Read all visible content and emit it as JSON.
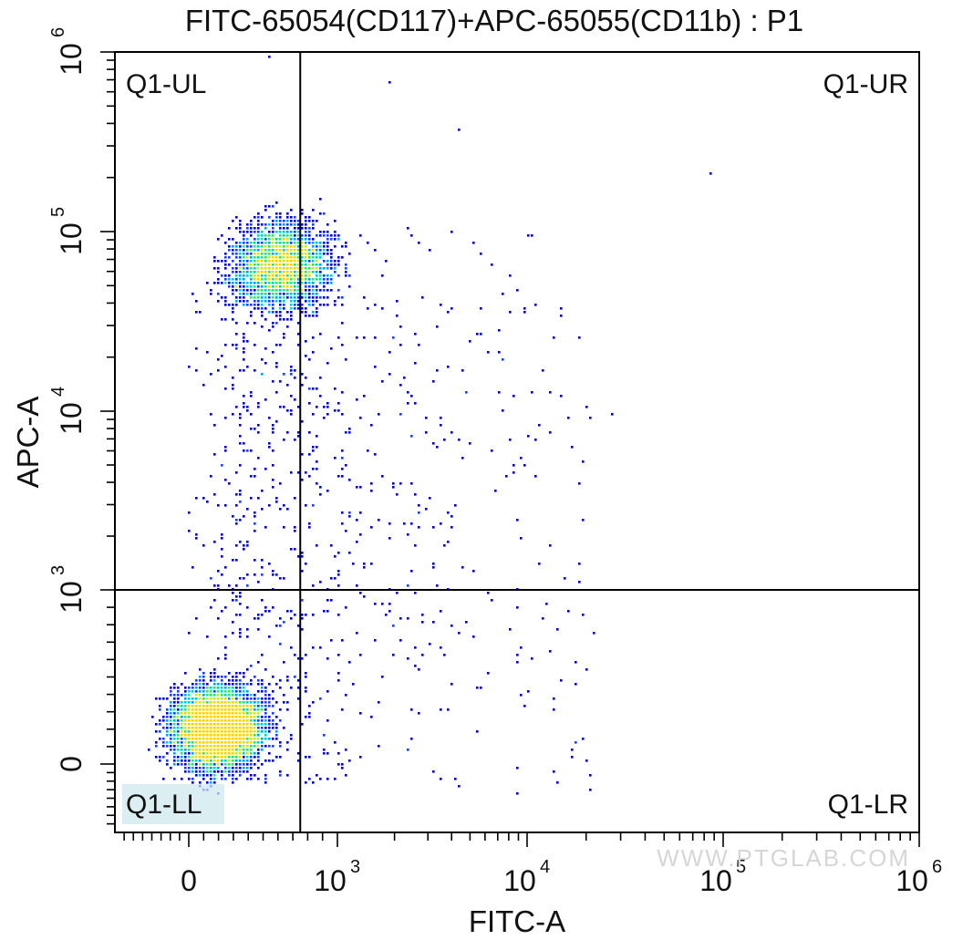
{
  "chart_data": {
    "type": "scatter",
    "title": "FITC-65054(CD117)+APC-65055(CD11b) : P1",
    "xlabel": "FITC-A",
    "ylabel": "APC-A",
    "x_scale": "biexponential (linear near 0, log above ~10^3)",
    "y_scale": "biexponential (linear near 0, log above ~10^3)",
    "xlim": [
      -800,
      1000000
    ],
    "ylim": [
      -800,
      1000000
    ],
    "x_ticks": [
      {
        "base": "0",
        "exp": ""
      },
      {
        "base": "10",
        "exp": "3"
      },
      {
        "base": "10",
        "exp": "4"
      },
      {
        "base": "10",
        "exp": "5"
      },
      {
        "base": "10",
        "exp": "6"
      }
    ],
    "y_ticks": [
      {
        "base": "0",
        "exp": ""
      },
      {
        "base": "10",
        "exp": "3"
      },
      {
        "base": "10",
        "exp": "4"
      },
      {
        "base": "10",
        "exp": "5"
      },
      {
        "base": "10",
        "exp": "6"
      }
    ],
    "gates": {
      "x_threshold": 750,
      "y_threshold": 1000
    },
    "quadrants": [
      {
        "label": "Q1-UL",
        "position": "top-left"
      },
      {
        "label": "Q1-UR",
        "position": "top-right"
      },
      {
        "label": "Q1-LL",
        "position": "bottom-left"
      },
      {
        "label": "Q1-LR",
        "position": "bottom-right"
      }
    ],
    "populations": [
      {
        "name": "",
        "x_center": 250,
        "y_center": 100,
        "description": "dense double-negative cluster in lower-left (highest density, green/yellow)"
      },
      {
        "name": "",
        "x_center": 600,
        "y_center": 60000,
        "description": "APC-positive cluster around 10^5 straddling the vertical gate"
      }
    ],
    "color_scale": [
      "#0000c8",
      "#1a3cff",
      "#00a0ff",
      "#00d2c8",
      "#30e070",
      "#c8e632",
      "#ffd000"
    ],
    "grid": false,
    "legend": "none"
  },
  "watermark": "WWW.PTGLAB.COM"
}
